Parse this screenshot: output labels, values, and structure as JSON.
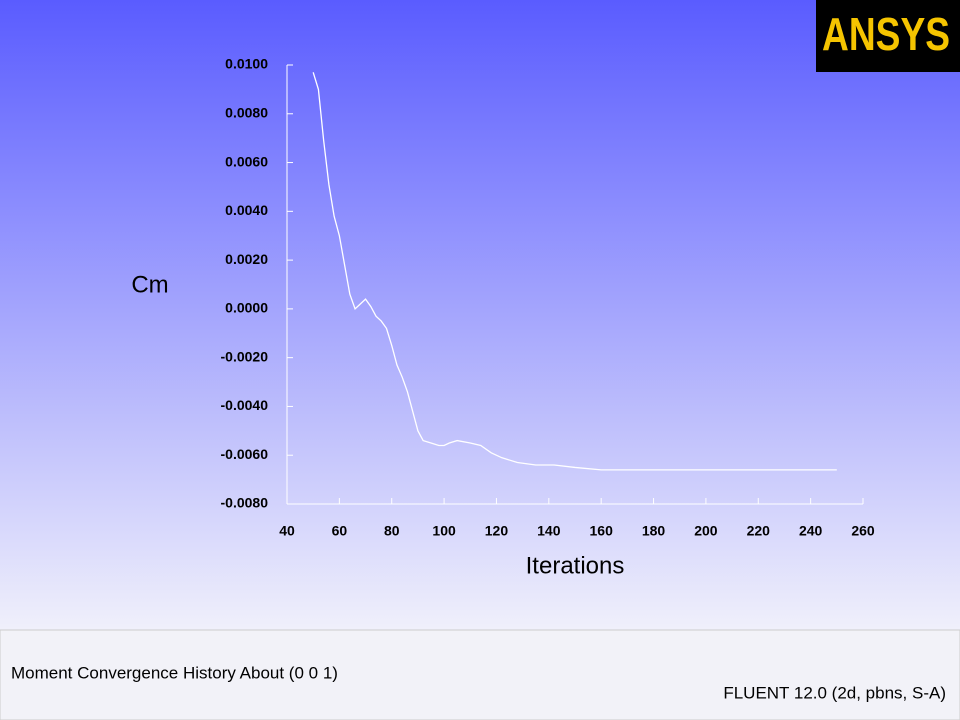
{
  "chart_data": {
    "type": "line",
    "title": "Moment Convergence History About (0 0 1)",
    "subtitle": "FLUENT 12.0 (2d, pbns, S-A)",
    "logo": "ANSYS",
    "xlabel": "Iterations",
    "ylabel": "Cm",
    "x": [
      50,
      52,
      54,
      56,
      58,
      60,
      62,
      64,
      66,
      68,
      70,
      72,
      74,
      76,
      78,
      80,
      82,
      84,
      86,
      88,
      90,
      92,
      95,
      98,
      100,
      102,
      105,
      110,
      114,
      118,
      122,
      128,
      135,
      142,
      150,
      160,
      180,
      200,
      250
    ],
    "series": [
      {
        "name": "Cm",
        "color": "#ffffff",
        "values": [
          0.0097,
          0.009,
          0.0069,
          0.0051,
          0.0038,
          0.003,
          0.0018,
          0.0006,
          0.0,
          0.0002,
          0.0004,
          0.0001,
          -0.0003,
          -0.0005,
          -0.0008,
          -0.0015,
          -0.0023,
          -0.0028,
          -0.0034,
          -0.0042,
          -0.005,
          -0.0054,
          -0.0055,
          -0.0056,
          -0.0056,
          -0.0055,
          -0.0054,
          -0.0055,
          -0.0056,
          -0.0059,
          -0.0061,
          -0.0063,
          -0.0064,
          -0.0064,
          -0.0065,
          -0.0066,
          -0.0066,
          -0.0066,
          -0.0066
        ]
      }
    ],
    "xlim": [
      40,
      260
    ],
    "xticks": [
      40,
      60,
      80,
      100,
      120,
      140,
      160,
      180,
      200,
      220,
      240,
      260
    ],
    "ylim": [
      -0.008,
      0.01
    ],
    "yticks": [
      {
        "value": 0.01,
        "label": "0.0100"
      },
      {
        "value": 0.008,
        "label": "0.0080"
      },
      {
        "value": 0.006,
        "label": "0.0060"
      },
      {
        "value": 0.004,
        "label": "0.0040"
      },
      {
        "value": 0.002,
        "label": "0.0020"
      },
      {
        "value": 0,
        "label": "0.0000"
      },
      {
        "value": -0.002,
        "label": "-0.0020"
      },
      {
        "value": -0.004,
        "label": "-0.0040"
      },
      {
        "value": -0.006,
        "label": "-0.0060"
      },
      {
        "value": -0.008,
        "label": "-0.0080"
      }
    ],
    "grid": false
  }
}
